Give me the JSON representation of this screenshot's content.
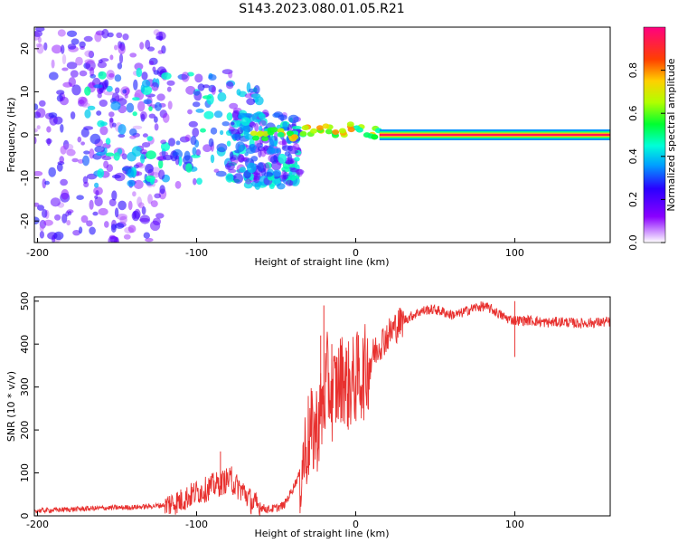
{
  "title": "S143.2023.080.01.05.R21",
  "chart_data": [
    {
      "type": "heatmap",
      "xlabel": "Height of straight line (km)",
      "ylabel": "Frequency (Hz)",
      "xlim": [
        -202,
        160
      ],
      "ylim": [
        -25,
        25
      ],
      "xticks": [
        -200,
        -100,
        0,
        100
      ],
      "xtick_labels": [
        "-200",
        "-100",
        "0",
        "100"
      ],
      "yticks": [
        20,
        10,
        0,
        -10,
        -20
      ],
      "ytick_labels": [
        "20",
        "10",
        "0",
        "-10",
        "-20"
      ],
      "description_points": {
        "ridge": [
          [
            -60,
            0
          ],
          [
            -50,
            0.5
          ],
          [
            -40,
            0
          ],
          [
            -30,
            1
          ],
          [
            -20,
            1.5
          ],
          [
            -10,
            0.5
          ],
          [
            0,
            1.5
          ],
          [
            10,
            0.5
          ],
          [
            15,
            0
          ]
        ],
        "scatter_regions": [
          {
            "x": [
              -202,
              -120
            ],
            "y": [
              -25,
              25
            ],
            "level": 0.2
          },
          {
            "x": [
              -170,
              -60
            ],
            "y": [
              -12,
              15
            ],
            "level": 0.35
          },
          {
            "x": [
              -80,
              -35
            ],
            "y": [
              -12,
              5
            ],
            "level": 0.35
          }
        ],
        "carrier": {
          "x": [
            15,
            160
          ],
          "y": 0,
          "level": 0.95
        }
      },
      "colorbar": {
        "label": "Normalized spectral amplitude",
        "range": [
          0.0,
          1.0
        ],
        "ticks": [
          0.0,
          0.2,
          0.4,
          0.6,
          0.8
        ],
        "tick_labels": [
          "0.0",
          "0.2",
          "0.4",
          "0.6",
          "0.8"
        ]
      }
    },
    {
      "type": "line",
      "xlabel": "Height of straight line (km)",
      "ylabel": "SNR (10 * v/v)",
      "xlim": [
        -202,
        160
      ],
      "ylim": [
        0,
        510
      ],
      "xticks": [
        -200,
        -100,
        0,
        100
      ],
      "xtick_labels": [
        "-200",
        "-100",
        "0",
        "100"
      ],
      "yticks": [
        0,
        100,
        200,
        300,
        400,
        500
      ],
      "ytick_labels": [
        "0",
        "100",
        "200",
        "300",
        "400",
        "500"
      ],
      "color": "#e8312f",
      "x": [
        -200,
        -180,
        -160,
        -140,
        -130,
        -120,
        -110,
        -100,
        -95,
        -90,
        -85,
        -80,
        -75,
        -70,
        -65,
        -60,
        -55,
        -50,
        -45,
        -40,
        -35,
        -30,
        -25,
        -20,
        -18,
        -15,
        -12,
        -10,
        -8,
        -5,
        -2,
        0,
        5,
        10,
        15,
        20,
        25,
        30,
        35,
        40,
        45,
        50,
        55,
        60,
        65,
        70,
        75,
        80,
        85,
        90,
        95,
        100,
        110,
        120,
        130,
        140,
        150,
        160
      ],
      "values": [
        12,
        15,
        18,
        20,
        22,
        25,
        35,
        55,
        60,
        70,
        75,
        85,
        70,
        55,
        30,
        20,
        15,
        18,
        25,
        60,
        100,
        180,
        200,
        260,
        320,
        280,
        300,
        310,
        330,
        300,
        310,
        320,
        330,
        370,
        400,
        420,
        440,
        455,
        465,
        475,
        480,
        480,
        475,
        468,
        470,
        478,
        485,
        488,
        482,
        470,
        460,
        455,
        455,
        450,
        452,
        448,
        450,
        452
      ],
      "spikes": [
        [
          -78,
          115
        ],
        [
          -85,
          150
        ],
        [
          -20,
          490
        ],
        [
          -22,
          420
        ],
        [
          -15,
          400
        ],
        [
          100,
          500
        ],
        [
          100,
          370
        ]
      ]
    }
  ]
}
